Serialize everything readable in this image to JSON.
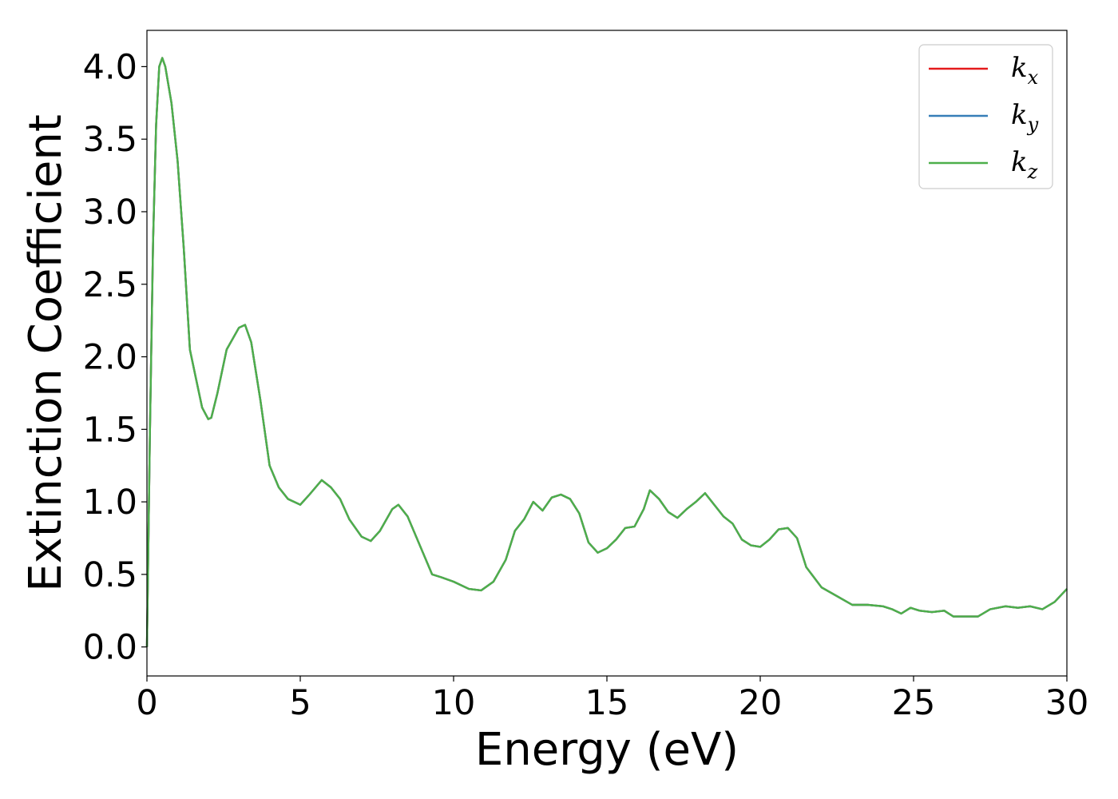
{
  "chart_data": {
    "type": "line",
    "title": "",
    "xlabel": "Energy (eV)",
    "ylabel": "Extinction Coefficient",
    "xlim": [
      0,
      30
    ],
    "ylim": [
      -0.2,
      4.25
    ],
    "xticks": [
      0,
      5,
      10,
      15,
      20,
      25,
      30
    ],
    "xtick_labels": [
      "0",
      "5",
      "10",
      "15",
      "20",
      "25",
      "30"
    ],
    "yticks": [
      0.0,
      0.5,
      1.0,
      1.5,
      2.0,
      2.5,
      3.0,
      3.5,
      4.0
    ],
    "ytick_labels": [
      "0.0",
      "0.5",
      "1.0",
      "1.5",
      "2.0",
      "2.5",
      "3.0",
      "3.5",
      "4.0"
    ],
    "grid": false,
    "legend_position": "top-right",
    "x": [
      0,
      0.1,
      0.2,
      0.3,
      0.4,
      0.5,
      0.6,
      0.8,
      1.0,
      1.2,
      1.4,
      1.5,
      1.6,
      1.8,
      2.0,
      2.1,
      2.3,
      2.6,
      3.0,
      3.2,
      3.4,
      3.7,
      4.0,
      4.3,
      4.6,
      5.0,
      5.3,
      5.7,
      6.0,
      6.3,
      6.6,
      7.0,
      7.3,
      7.6,
      8.0,
      8.2,
      8.5,
      9.0,
      9.3,
      9.6,
      10.0,
      10.5,
      10.9,
      11.3,
      11.7,
      12.0,
      12.3,
      12.6,
      12.9,
      13.2,
      13.5,
      13.8,
      14.1,
      14.4,
      14.7,
      15.0,
      15.3,
      15.6,
      15.9,
      16.2,
      16.4,
      16.7,
      17.0,
      17.3,
      17.6,
      17.9,
      18.2,
      18.5,
      18.8,
      19.1,
      19.4,
      19.7,
      20.0,
      20.3,
      20.6,
      20.9,
      21.2,
      21.5,
      22.0,
      22.5,
      23.0,
      23.5,
      24.0,
      24.3,
      24.6,
      24.9,
      25.2,
      25.6,
      26.0,
      26.3,
      26.7,
      27.1,
      27.5,
      28.0,
      28.4,
      28.8,
      29.2,
      29.6,
      30.0
    ],
    "series": [
      {
        "name": "k_x",
        "color": "#e41a1c",
        "values": [
          0.0,
          1.5,
          2.8,
          3.6,
          4.0,
          4.06,
          4.0,
          3.75,
          3.35,
          2.75,
          2.05,
          1.95,
          1.85,
          1.65,
          1.57,
          1.58,
          1.75,
          2.05,
          2.2,
          2.22,
          2.1,
          1.7,
          1.25,
          1.1,
          1.02,
          0.98,
          1.05,
          1.15,
          1.1,
          1.02,
          0.88,
          0.76,
          0.73,
          0.8,
          0.95,
          0.98,
          0.9,
          0.65,
          0.5,
          0.48,
          0.45,
          0.4,
          0.39,
          0.45,
          0.6,
          0.8,
          0.88,
          1.0,
          0.94,
          1.03,
          1.05,
          1.02,
          0.92,
          0.72,
          0.65,
          0.68,
          0.74,
          0.82,
          0.83,
          0.95,
          1.08,
          1.02,
          0.93,
          0.89,
          0.95,
          1.0,
          1.06,
          0.98,
          0.9,
          0.85,
          0.74,
          0.7,
          0.69,
          0.74,
          0.81,
          0.82,
          0.75,
          0.55,
          0.41,
          0.35,
          0.29,
          0.29,
          0.28,
          0.26,
          0.23,
          0.27,
          0.25,
          0.24,
          0.25,
          0.21,
          0.21,
          0.21,
          0.26,
          0.28,
          0.27,
          0.28,
          0.26,
          0.31,
          0.4
        ]
      },
      {
        "name": "k_y",
        "color": "#377eb8",
        "values": [
          0.0,
          1.5,
          2.8,
          3.6,
          4.0,
          4.06,
          4.0,
          3.75,
          3.35,
          2.75,
          2.05,
          1.95,
          1.85,
          1.65,
          1.57,
          1.58,
          1.75,
          2.05,
          2.2,
          2.22,
          2.1,
          1.7,
          1.25,
          1.1,
          1.02,
          0.98,
          1.05,
          1.15,
          1.1,
          1.02,
          0.88,
          0.76,
          0.73,
          0.8,
          0.95,
          0.98,
          0.9,
          0.65,
          0.5,
          0.48,
          0.45,
          0.4,
          0.39,
          0.45,
          0.6,
          0.8,
          0.88,
          1.0,
          0.94,
          1.03,
          1.05,
          1.02,
          0.92,
          0.72,
          0.65,
          0.68,
          0.74,
          0.82,
          0.83,
          0.95,
          1.08,
          1.02,
          0.93,
          0.89,
          0.95,
          1.0,
          1.06,
          0.98,
          0.9,
          0.85,
          0.74,
          0.7,
          0.69,
          0.74,
          0.81,
          0.82,
          0.75,
          0.55,
          0.41,
          0.35,
          0.29,
          0.29,
          0.28,
          0.26,
          0.23,
          0.27,
          0.25,
          0.24,
          0.25,
          0.21,
          0.21,
          0.21,
          0.26,
          0.28,
          0.27,
          0.28,
          0.26,
          0.31,
          0.4
        ]
      },
      {
        "name": "k_z",
        "color": "#4daf4a",
        "values": [
          0.0,
          1.5,
          2.8,
          3.6,
          4.0,
          4.06,
          4.0,
          3.75,
          3.35,
          2.75,
          2.05,
          1.95,
          1.85,
          1.65,
          1.57,
          1.58,
          1.75,
          2.05,
          2.2,
          2.22,
          2.1,
          1.7,
          1.25,
          1.1,
          1.02,
          0.98,
          1.05,
          1.15,
          1.1,
          1.02,
          0.88,
          0.76,
          0.73,
          0.8,
          0.95,
          0.98,
          0.9,
          0.65,
          0.5,
          0.48,
          0.45,
          0.4,
          0.39,
          0.45,
          0.6,
          0.8,
          0.88,
          1.0,
          0.94,
          1.03,
          1.05,
          1.02,
          0.92,
          0.72,
          0.65,
          0.68,
          0.74,
          0.82,
          0.83,
          0.95,
          1.08,
          1.02,
          0.93,
          0.89,
          0.95,
          1.0,
          1.06,
          0.98,
          0.9,
          0.85,
          0.74,
          0.7,
          0.69,
          0.74,
          0.81,
          0.82,
          0.75,
          0.55,
          0.41,
          0.35,
          0.29,
          0.29,
          0.28,
          0.26,
          0.23,
          0.27,
          0.25,
          0.24,
          0.25,
          0.21,
          0.21,
          0.21,
          0.26,
          0.28,
          0.27,
          0.28,
          0.26,
          0.31,
          0.4
        ]
      }
    ],
    "legend": [
      {
        "base": "k",
        "sub": "x",
        "color": "#e41a1c"
      },
      {
        "base": "k",
        "sub": "y",
        "color": "#377eb8"
      },
      {
        "base": "k",
        "sub": "z",
        "color": "#4daf4a"
      }
    ]
  }
}
